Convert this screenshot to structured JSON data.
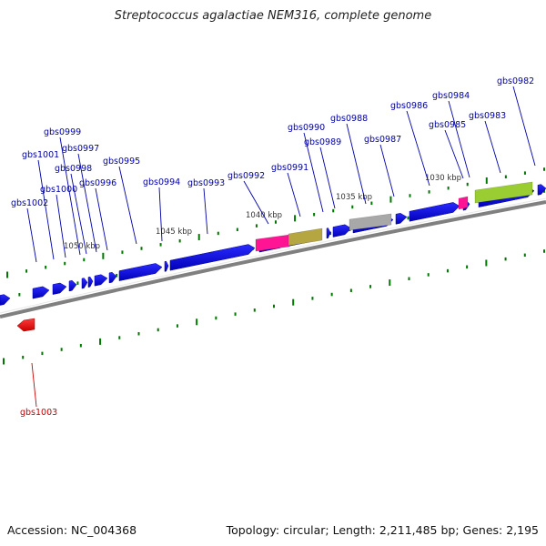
{
  "title": "Streptococcus agalactiae NEM316, complete genome",
  "footer": {
    "accession": "Accession: NC_004368",
    "summary": "Topology: circular; Length: 2,211,485 bp; Genes: 2,195"
  },
  "colors": {
    "cds": "#0000ee",
    "cds_reverse": "#ff0000",
    "tick": "#007700",
    "label_forward": "#0000aa",
    "label_reverse": "#cc0000",
    "trna": "#ff1493",
    "rrna_olive": "#b5a642",
    "misc_gray": "#a8a8a8",
    "misc_green": "#9acd32",
    "backbone": "#808080"
  },
  "scale_labels": [
    "1050 kbp",
    "1045 kbp",
    "1040 kbp",
    "1035 kbp",
    "1030 kbp"
  ],
  "gene_labels": [
    {
      "name": "gbs1002",
      "strand": "+"
    },
    {
      "name": "gbs1001",
      "strand": "+"
    },
    {
      "name": "gbs1000",
      "strand": "+"
    },
    {
      "name": "gbs0999",
      "strand": "+"
    },
    {
      "name": "gbs0998",
      "strand": "+"
    },
    {
      "name": "gbs0997",
      "strand": "+"
    },
    {
      "name": "gbs0996",
      "strand": "+"
    },
    {
      "name": "gbs0995",
      "strand": "+"
    },
    {
      "name": "gbs0994",
      "strand": "+"
    },
    {
      "name": "gbs0993",
      "strand": "+"
    },
    {
      "name": "gbs0992",
      "strand": "+"
    },
    {
      "name": "gbs0991",
      "strand": "+"
    },
    {
      "name": "gbs0990",
      "strand": "+"
    },
    {
      "name": "gbs0989",
      "strand": "+"
    },
    {
      "name": "gbs0988",
      "strand": "+"
    },
    {
      "name": "gbs0987",
      "strand": "+"
    },
    {
      "name": "gbs0986",
      "strand": "+"
    },
    {
      "name": "gbs0985",
      "strand": "+"
    },
    {
      "name": "gbs0984",
      "strand": "+"
    },
    {
      "name": "gbs0983",
      "strand": "+"
    },
    {
      "name": "gbs0982",
      "strand": "+"
    },
    {
      "name": "gbs1003",
      "strand": "-"
    }
  ]
}
